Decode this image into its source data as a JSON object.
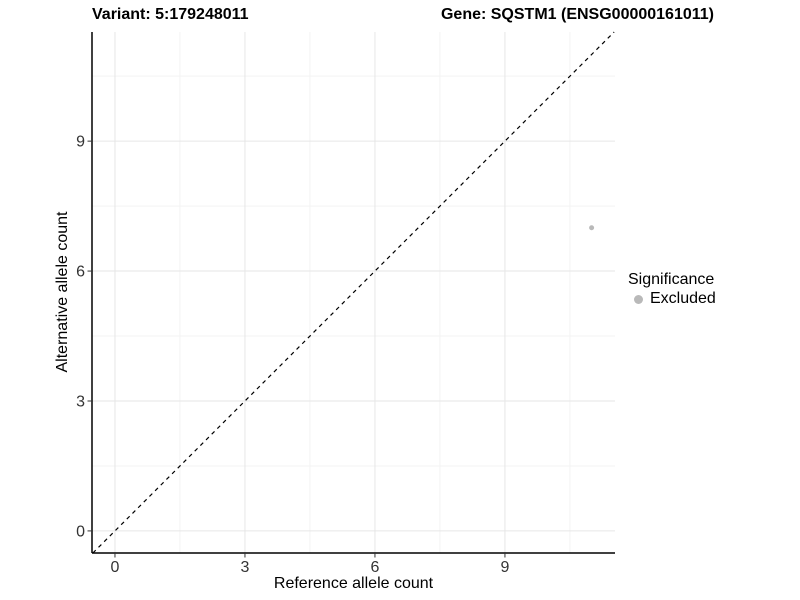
{
  "chart_data": {
    "type": "scatter",
    "title_left": "Variant: 5:179248011",
    "title_right": "Gene: SQSTM1 (ENSG00000161011)",
    "xlabel": "Reference allele count",
    "ylabel": "Alternative allele count",
    "xlim": [
      -0.53,
      11.54
    ],
    "ylim": [
      -0.51,
      11.52
    ],
    "x_ticks": [
      0,
      3,
      6,
      9
    ],
    "y_ticks": [
      0,
      3,
      6,
      9
    ],
    "x_minor_ticks": [
      1.5,
      4.5,
      7.5,
      10.5
    ],
    "y_minor_ticks": [
      1.5,
      4.5,
      7.5,
      10.5
    ],
    "grid": true,
    "identity_line": {
      "equation": "y = x",
      "style": "dashed",
      "color": "#000000"
    },
    "series": [
      {
        "name": "Excluded",
        "color": "#b9b9b9",
        "points": [
          {
            "x": 11,
            "y": 7
          }
        ]
      }
    ],
    "legend": {
      "title": "Significance",
      "position": "right",
      "items": [
        {
          "label": "Excluded",
          "color": "#b9b9b9",
          "marker": "circle-icon"
        }
      ]
    },
    "colors": {
      "major_grid": "#e6e6e6",
      "minor_grid": "#f3f3f3",
      "axis_line": "#000000",
      "tick_mark": "#333333",
      "tick_label": "#333333"
    }
  }
}
